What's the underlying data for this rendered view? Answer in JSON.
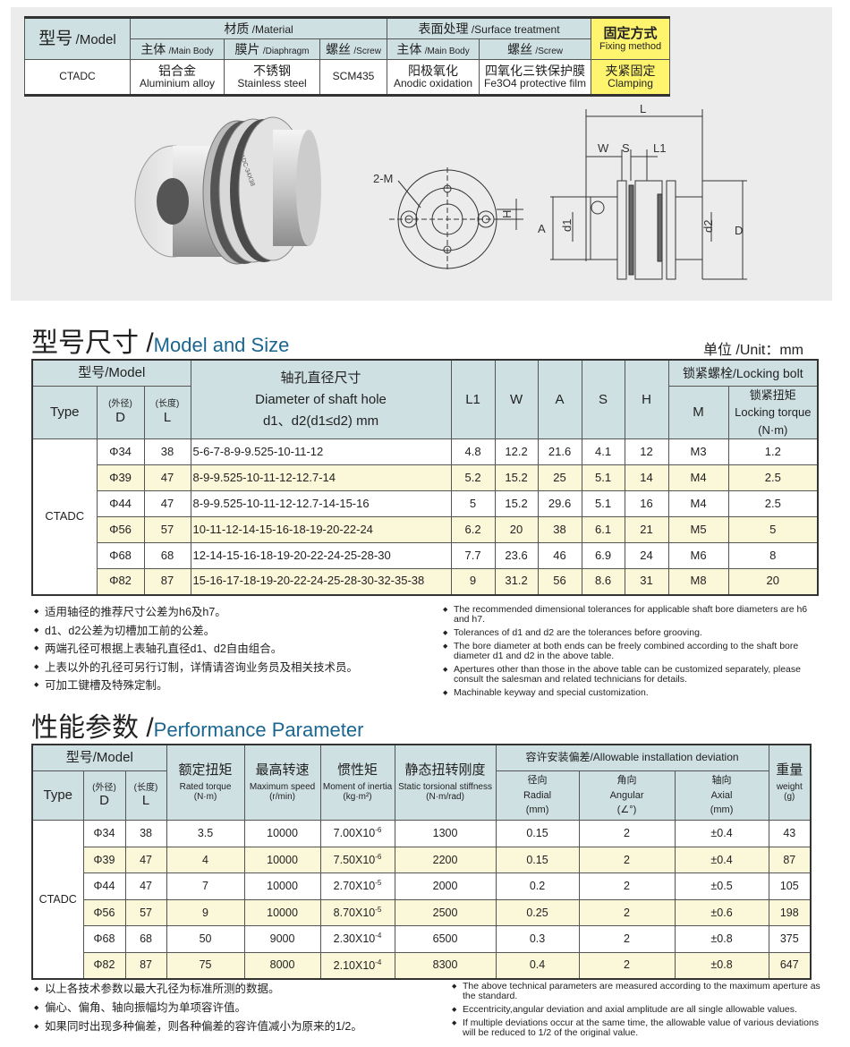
{
  "material_table": {
    "model_header": {
      "cn": "型号",
      "en": "/Model"
    },
    "material_header": {
      "cn": "材质",
      "en": "/Material"
    },
    "surface_header": {
      "cn": "表面处理",
      "en": "/Surface treatment"
    },
    "fixing_header": {
      "cn": "固定方式",
      "en": "Fixing method"
    },
    "sub_headers": [
      {
        "cn": "主体",
        "en": "/Main Body"
      },
      {
        "cn": "膜片",
        "en": "/Diaphragm"
      },
      {
        "cn": "螺丝",
        "en": "/Screw"
      },
      {
        "cn": "主体",
        "en": "/Main Body"
      },
      {
        "cn": "螺丝",
        "en": "/Screw"
      }
    ],
    "row": {
      "model": "CTADC",
      "cells": [
        {
          "cn": "铝合金",
          "en": "Aluminium alloy"
        },
        {
          "cn": "不锈钢",
          "en": "Stainless steel"
        },
        {
          "cn": "",
          "en": "SCM435"
        },
        {
          "cn": "阳极氧化",
          "en": "Anodic oxidation"
        },
        {
          "cn": "四氧化三铁保护膜",
          "en": "Fe3O4 protective film"
        },
        {
          "cn": "夹紧固定",
          "en": "Clamping"
        }
      ]
    }
  },
  "drawing": {
    "labels": {
      "m": "2-M",
      "h": "H",
      "l": "L",
      "w": "W",
      "s": "S",
      "l1": "L1",
      "a": "A",
      "d1": "d1",
      "d2": "d2",
      "d": "D"
    },
    "photo_engraving": "CTADC-34X38"
  },
  "size_section": {
    "title_cn": "型号尺寸 /",
    "title_en": "Model and Size",
    "unit": "单位 /Unit：mm"
  },
  "size_table": {
    "headers": {
      "model": "型号/Model",
      "type": "Type",
      "d_cn": "(外径)",
      "d": "D",
      "l_cn": "(长度)",
      "l": "L",
      "hole_cn": "轴孔直径尺寸",
      "hole_en": "Diameter of shaft hole",
      "hole_sub": "d1、d2(d1≤d2) mm",
      "l1": "L1",
      "w": "W",
      "a": "A",
      "s": "S",
      "h": "H",
      "bolt": "锁紧螺栓/Locking bolt",
      "m": "M",
      "torque_cn": "锁紧扭矩",
      "torque_en": "Locking torque",
      "torque_unit": "(N·m)"
    },
    "type": "CTADC",
    "rows": [
      {
        "d": "Φ34",
        "l": "38",
        "hole": "5-6-7-8-9-9.525-10-11-12",
        "l1": "4.8",
        "w": "12.2",
        "a": "21.6",
        "s": "4.1",
        "h": "12",
        "m": "M3",
        "t": "1.2"
      },
      {
        "d": "Φ39",
        "l": "47",
        "hole": "8-9-9.525-10-11-12-12.7-14",
        "l1": "5.2",
        "w": "15.2",
        "a": "25",
        "s": "5.1",
        "h": "14",
        "m": "M4",
        "t": "2.5"
      },
      {
        "d": "Φ44",
        "l": "47",
        "hole": "8-9-9.525-10-11-12-12.7-14-15-16",
        "l1": "5",
        "w": "15.2",
        "a": "29.6",
        "s": "5.1",
        "h": "16",
        "m": "M4",
        "t": "2.5"
      },
      {
        "d": "Φ56",
        "l": "57",
        "hole": "10-11-12-14-15-16-18-19-20-22-24",
        "l1": "6.2",
        "w": "20",
        "a": "38",
        "s": "6.1",
        "h": "21",
        "m": "M5",
        "t": "5"
      },
      {
        "d": "Φ68",
        "l": "68",
        "hole": "12-14-15-16-18-19-20-22-24-25-28-30",
        "l1": "7.7",
        "w": "23.6",
        "a": "46",
        "s": "6.9",
        "h": "24",
        "m": "M6",
        "t": "8"
      },
      {
        "d": "Φ82",
        "l": "87",
        "hole": "15-16-17-18-19-20-22-24-25-28-30-32-35-38",
        "l1": "9",
        "w": "31.2",
        "a": "56",
        "s": "8.6",
        "h": "31",
        "m": "M8",
        "t": "20"
      }
    ]
  },
  "size_notes": {
    "cn": [
      "适用轴径的推荐尺寸公差为h6及h7。",
      "d1、d2公差为切槽加工前的公差。",
      "两端孔径可根据上表轴孔直径d1、d2自由组合。",
      "上表以外的孔径可另行订制，详情请咨询业务员及相关技术员。",
      "可加工键槽及特殊定制。"
    ],
    "en": [
      "The recommended dimensional tolerances for applicable shaft bore diameters are h6 and h7.",
      "Tolerances of d1 and d2 are the tolerances before grooving.",
      "The bore diameter at both ends can be freely combined according to the shaft bore diameter d1 and d2 in the above table.",
      "Apertures other than those in the above table can be customized separately, please consult the salesman and related technicians for details.",
      "Machinable keyway and special customization."
    ]
  },
  "perf_section": {
    "title_cn": "性能参数 /",
    "title_en": "Performance Parameter"
  },
  "perf_table": {
    "headers": {
      "model": "型号/Model",
      "type": "Type",
      "d_cn": "(外径)",
      "d": "D",
      "l_cn": "(长度)",
      "l": "L",
      "torque_cn": "额定扭矩",
      "torque_en": "Rated torque",
      "torque_unit": "(N·m)",
      "speed_cn": "最高转速",
      "speed_en": "Maximum speed",
      "speed_unit": "(r/min)",
      "inertia_cn": "惯性矩",
      "inertia_en": "Moment of inertia",
      "inertia_unit": "(kg·m²)",
      "stiff_cn": "静态扭转刚度",
      "stiff_en": "Static torsional stiffness",
      "stiff_unit": "(N·m/rad)",
      "dev": "容许安装偏差/Allowable installation deviation",
      "radial_cn": "径向",
      "radial_en": "Radial",
      "radial_unit": "(mm)",
      "angular_cn": "角向",
      "angular_en": "Angular",
      "angular_unit": "(∠°)",
      "axial_cn": "轴向",
      "axial_en": "Axial",
      "axial_unit": "(mm)",
      "weight_cn": "重量",
      "weight_en": "weight",
      "weight_unit": "(g)"
    },
    "type": "CTADC",
    "rows": [
      {
        "d": "Φ34",
        "l": "38",
        "torque": "3.5",
        "speed": "10000",
        "inertia": "7.00X10",
        "exp": "-6",
        "stiff": "1300",
        "radial": "0.15",
        "angular": "2",
        "axial": "±0.4",
        "weight": "43"
      },
      {
        "d": "Φ39",
        "l": "47",
        "torque": "4",
        "speed": "10000",
        "inertia": "7.50X10",
        "exp": "-6",
        "stiff": "2200",
        "radial": "0.15",
        "angular": "2",
        "axial": "±0.4",
        "weight": "87"
      },
      {
        "d": "Φ44",
        "l": "47",
        "torque": "7",
        "speed": "10000",
        "inertia": "2.70X10",
        "exp": "-5",
        "stiff": "2000",
        "radial": "0.2",
        "angular": "2",
        "axial": "±0.5",
        "weight": "105"
      },
      {
        "d": "Φ56",
        "l": "57",
        "torque": "9",
        "speed": "10000",
        "inertia": "8.70X10",
        "exp": "-5",
        "stiff": "2500",
        "radial": "0.25",
        "angular": "2",
        "axial": "±0.6",
        "weight": "198"
      },
      {
        "d": "Φ68",
        "l": "68",
        "torque": "50",
        "speed": "9000",
        "inertia": "2.30X10",
        "exp": "-4",
        "stiff": "6500",
        "radial": "0.3",
        "angular": "2",
        "axial": "±0.8",
        "weight": "375"
      },
      {
        "d": "Φ82",
        "l": "87",
        "torque": "75",
        "speed": "8000",
        "inertia": "2.10X10",
        "exp": "-4",
        "stiff": "8300",
        "radial": "0.4",
        "angular": "2",
        "axial": "±0.8",
        "weight": "647"
      }
    ]
  },
  "perf_notes": {
    "cn": [
      "以上各技术参数以最大孔径为标准所测的数据。",
      "偏心、偏角、轴向振幅均为单项容许值。",
      "如果同时出现多种偏差，则各种偏差的容许值减小为原来的1/2。"
    ],
    "en": [
      "The above technical parameters are measured according to the maximum aperture as the standard.",
      "Eccentricity,angular deviation and axial amplitude are all single allowable values.",
      "If multiple deviations occur at the same time, the allowable value of various deviations will be reduced to 1/2 of the original value."
    ]
  },
  "colors": {
    "header_bg": "#cfe0e3",
    "highlight": "#fff46e",
    "row_alt": "#fbf7d9",
    "title_en": "#1a6691"
  }
}
